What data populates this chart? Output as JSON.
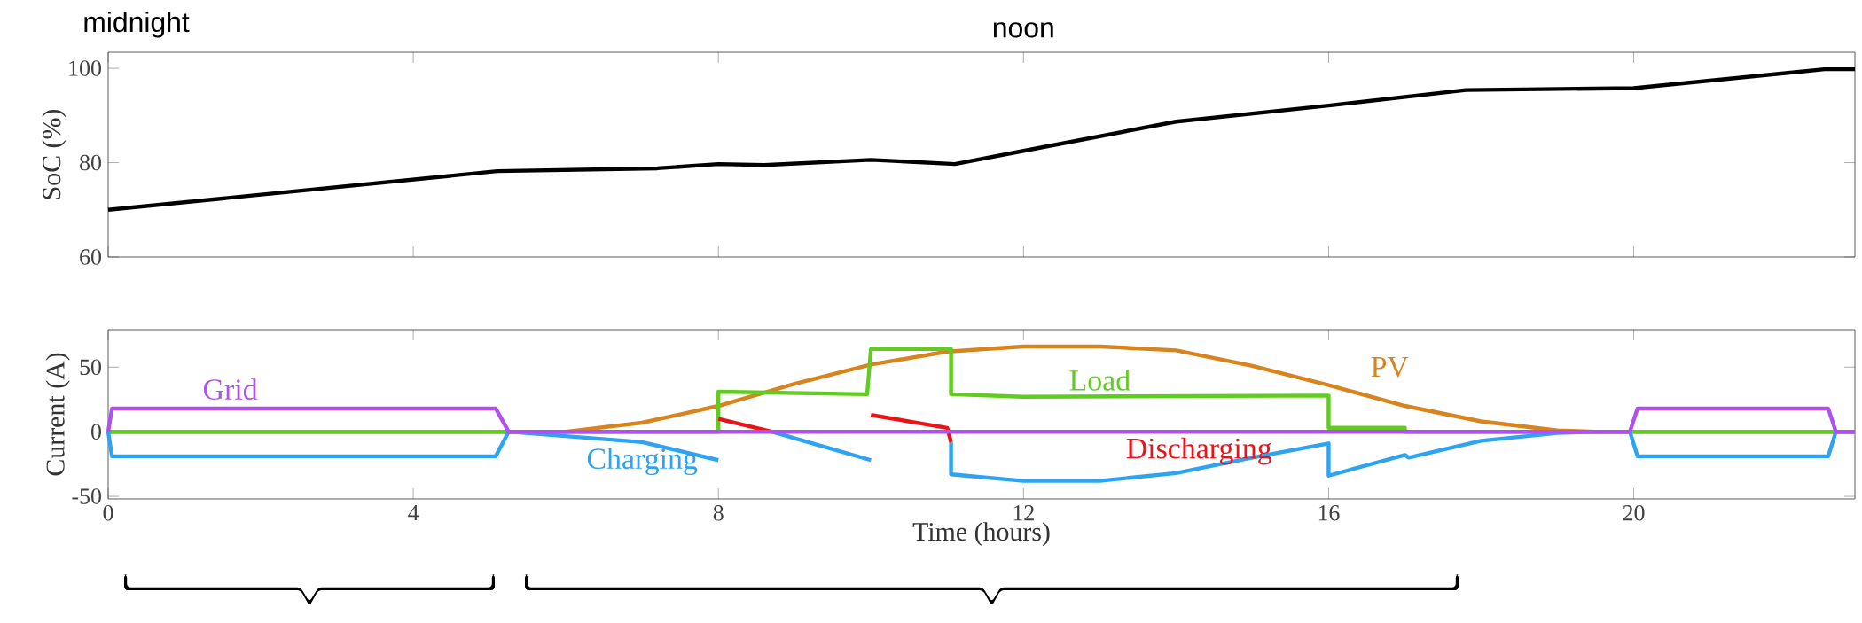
{
  "chart_data": [
    {
      "type": "line",
      "ylabel": "SoC (%)",
      "annotations": [
        "midnight",
        "noon"
      ],
      "x": [
        0,
        5.1,
        7.2,
        8.0,
        8.6,
        10.0,
        11.1,
        12,
        14,
        16.0,
        17.8,
        20.0,
        22.5,
        22.9
      ],
      "values": [
        70,
        78.2,
        78.8,
        79.7,
        79.5,
        80.6,
        79.7,
        82.5,
        88.7,
        92.1,
        95.4,
        95.8,
        99.8,
        99.8
      ],
      "color": "#000000",
      "xlim": [
        0,
        22.9
      ],
      "ylim": [
        60,
        103.4
      ],
      "xticks": [
        {
          "value": 0,
          "label": null
        },
        {
          "value": 4,
          "label": null
        },
        {
          "value": 8,
          "label": null
        },
        {
          "value": 12,
          "label": null
        },
        {
          "value": 16,
          "label": null
        },
        {
          "value": 20,
          "label": null
        }
      ],
      "yticks": [
        60,
        80,
        100
      ],
      "tick_labels": "y",
      "grid": false,
      "legend": false
    },
    {
      "type": "line",
      "xlabel": "Time (hours)",
      "ylabel": "Current (A)",
      "series": [
        {
          "name": "PV",
          "color": "#d8841e",
          "x": [
            0,
            6,
            7,
            8,
            9,
            10,
            11,
            12,
            13,
            14,
            15,
            16,
            17,
            18,
            19,
            19.5,
            22.9
          ],
          "values": [
            0,
            0,
            7,
            20,
            37,
            52,
            62,
            66,
            66,
            63,
            51,
            36,
            20,
            8,
            1,
            0,
            0
          ]
        },
        {
          "name": "Load",
          "color": "#5fcc1f",
          "x": [
            0,
            8,
            8,
            9.95,
            10,
            11.05,
            11.05,
            12,
            16,
            16,
            17,
            17,
            22.9
          ],
          "values": [
            0,
            0,
            31,
            29,
            64,
            64,
            29,
            27,
            28,
            3,
            3,
            0,
            0
          ]
        },
        {
          "name": "Charging",
          "color": "#2ea3f2",
          "x": [
            0,
            0.05,
            5.08,
            5.25,
            7,
            8,
            null,
            8.7,
            10,
            null,
            11.05,
            11.05,
            12,
            13,
            14,
            15,
            16,
            16,
            17,
            17.05,
            18,
            19,
            19.5,
            19.95,
            20.05,
            22.55,
            22.65,
            22.9
          ],
          "values": [
            0,
            -19,
            -19,
            0,
            -8,
            -22,
            null,
            0,
            -22,
            null,
            -8,
            -33,
            -38,
            -38,
            -32,
            -20,
            -9,
            -34,
            -18,
            -20,
            -7,
            -1,
            0,
            0,
            -19,
            -19,
            0,
            0
          ]
        },
        {
          "name": "Discharging",
          "color": "#e8141a",
          "x": [
            8,
            8.7,
            null,
            10,
            11,
            11.05
          ],
          "values": [
            10,
            0,
            null,
            13,
            3,
            -8
          ]
        },
        {
          "name": "Grid",
          "color": "#b050ee",
          "x": [
            0,
            0.05,
            5.08,
            5.25,
            19.95,
            20.05,
            22.55,
            22.65,
            22.9
          ],
          "values": [
            0,
            18,
            18,
            0,
            0,
            18,
            18,
            0,
            0
          ]
        }
      ],
      "xlim": [
        0,
        22.9
      ],
      "ylim": [
        -52,
        79
      ],
      "xticks": [
        0,
        4,
        8,
        12,
        16,
        20
      ],
      "yticks": [
        -50,
        0,
        50
      ],
      "grid": false,
      "legend": false
    }
  ]
}
